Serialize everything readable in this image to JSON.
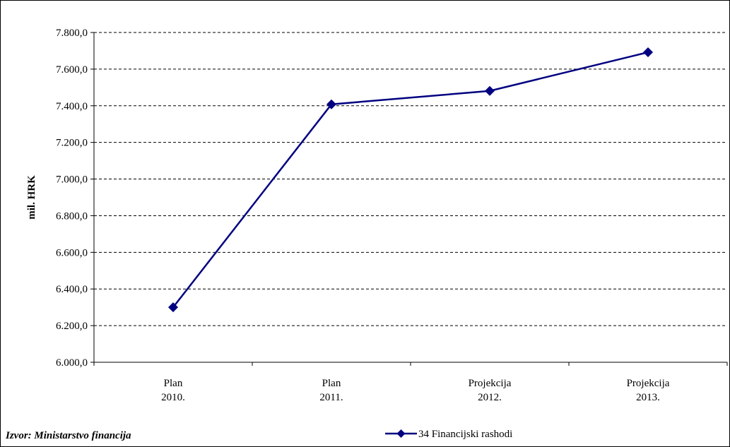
{
  "source_note": "Izvor: Ministarstvo financija",
  "colors": {
    "series": "#000080",
    "grid": "#000000",
    "axis": "#000000"
  },
  "chart_data": {
    "type": "line",
    "categories": [
      [
        "Plan",
        "2010."
      ],
      [
        "Plan",
        "2011."
      ],
      [
        "Projekcija",
        "2012."
      ],
      [
        "Projekcija",
        "2013."
      ]
    ],
    "series": [
      {
        "name": "34 Financijski rashodi",
        "values": [
          6300,
          7408,
          7481,
          7692
        ],
        "marker": "diamond"
      }
    ],
    "ylabel": "mil. HRK",
    "xlabel": "",
    "title": "",
    "ylim": [
      6000,
      7800
    ],
    "ytick_step": 200,
    "ytick_labels": [
      "6.000,0",
      "6.200,0",
      "6.400,0",
      "6.600,0",
      "6.800,0",
      "7.000,0",
      "7.200,0",
      "7.400,0",
      "7.600,0",
      "7.800,0"
    ],
    "grid": "horizontal-dashed",
    "legend_position": "bottom-center"
  }
}
